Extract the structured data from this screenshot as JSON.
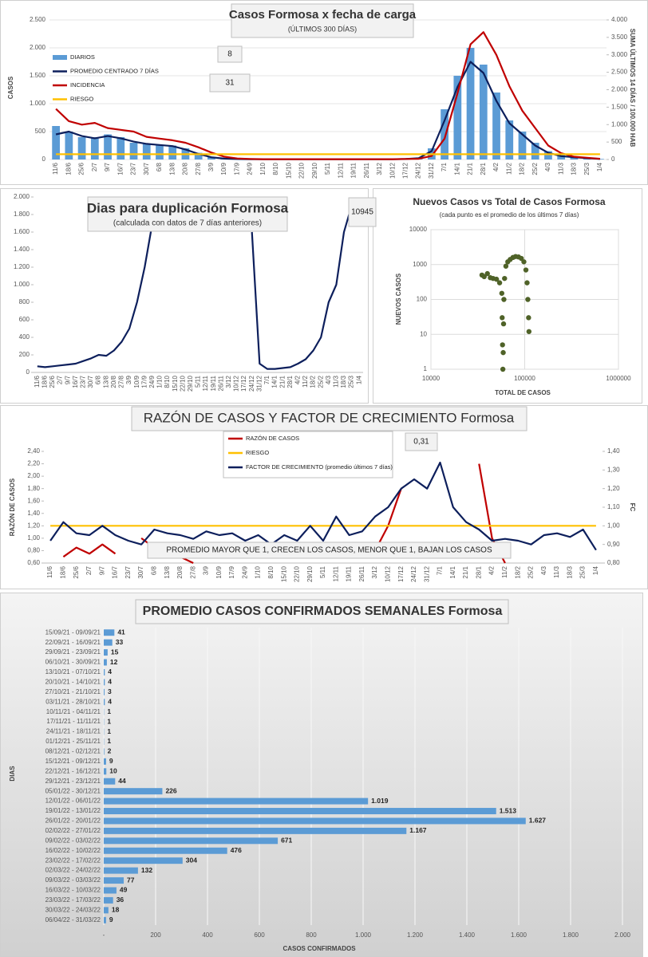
{
  "chart_data": [
    {
      "type": "bar",
      "title": "Casos Formosa x fecha de carga",
      "subtitle": "(ÚLTIMOS 300 DÍAS)",
      "y_label": "CASOS",
      "y2_label": "SUMA ÚLTIMOS 14 DÍAS / 100.000 HAB",
      "categories": [
        "11/6",
        "18/6",
        "25/6",
        "2/7",
        "9/7",
        "16/7",
        "23/7",
        "30/7",
        "6/8",
        "13/8",
        "20/8",
        "27/8",
        "3/9",
        "10/9",
        "17/9",
        "24/9",
        "1/10",
        "8/10",
        "15/10",
        "22/10",
        "29/10",
        "5/11",
        "12/11",
        "19/11",
        "26/11",
        "3/12",
        "10/12",
        "17/12",
        "24/12",
        "31/12",
        "7/1",
        "14/1",
        "21/1",
        "28/1",
        "4/2",
        "11/2",
        "18/2",
        "25/2",
        "4/3",
        "11/3",
        "18/3",
        "25/3",
        "1/4"
      ],
      "series": [
        {
          "name": "DIARIOS",
          "type": "bar",
          "color": "#5b9bd5",
          "values": [
            600,
            500,
            400,
            400,
            450,
            400,
            300,
            280,
            250,
            250,
            200,
            120,
            50,
            20,
            10,
            5,
            5,
            5,
            5,
            5,
            5,
            5,
            5,
            5,
            5,
            5,
            5,
            10,
            30,
            200,
            900,
            1500,
            2000,
            1700,
            1200,
            700,
            500,
            300,
            150,
            80,
            50,
            30,
            10
          ]
        },
        {
          "name": "PROMEDIO CENTRADO 7 DÍAS",
          "type": "line",
          "color": "#0d1f5c",
          "values": [
            450,
            500,
            420,
            380,
            420,
            380,
            320,
            280,
            260,
            240,
            180,
            100,
            40,
            15,
            8,
            5,
            5,
            5,
            5,
            5,
            5,
            5,
            5,
            5,
            5,
            5,
            5,
            8,
            25,
            150,
            700,
            1300,
            1750,
            1550,
            1050,
            650,
            450,
            250,
            120,
            60,
            40,
            25,
            10
          ]
        },
        {
          "name": "INCIDENCIA",
          "type": "line",
          "axis": "y2",
          "color": "#c00000",
          "values": [
            1450,
            1100,
            1000,
            1050,
            900,
            850,
            800,
            650,
            600,
            550,
            480,
            350,
            200,
            80,
            30,
            15,
            10,
            10,
            10,
            10,
            10,
            10,
            10,
            10,
            10,
            10,
            10,
            15,
            20,
            100,
            600,
            1900,
            3300,
            3650,
            3000,
            2100,
            1400,
            900,
            400,
            180,
            80,
            50,
            20
          ]
        },
        {
          "name": "RIESGO",
          "type": "line",
          "axis": "y2",
          "color": "#ffc000",
          "values": [
            150,
            150,
            150,
            150,
            150,
            150,
            150,
            150,
            150,
            150,
            150,
            150,
            150,
            150,
            150,
            150,
            150,
            150,
            150,
            150,
            150,
            150,
            150,
            150,
            150,
            150,
            150,
            150,
            150,
            150,
            150,
            150,
            150,
            150,
            150,
            150,
            150,
            150,
            150,
            150,
            150,
            150,
            150
          ]
        }
      ],
      "ylim": [
        0,
        2500
      ],
      "yticks": [
        0,
        500,
        {
          "value": 1000,
          "label": "1.000"
        },
        {
          "value": 1500,
          "label": "1.500"
        },
        {
          "value": 2000,
          "label": "2.000"
        },
        {
          "value": 2500,
          "label": "2.500"
        }
      ],
      "y2lim": [
        0,
        4000
      ],
      "y2ticks": [
        0,
        500,
        {
          "value": 1000,
          "label": "1.000"
        },
        {
          "value": 1500,
          "label": "1.500"
        },
        {
          "value": 2000,
          "label": "2.000"
        },
        {
          "value": 2500,
          "label": "2.500"
        },
        {
          "value": 3000,
          "label": "3.000"
        },
        {
          "value": 3500,
          "label": "3.500"
        },
        {
          "value": 4000,
          "label": "4.000"
        }
      ],
      "grid": true,
      "legend": "upper left",
      "annotations": [
        "8",
        "31"
      ]
    },
    {
      "type": "line",
      "title": "Dias para duplicación Formosa",
      "subtitle": "(calculada con datos de 7 días anteriores)",
      "categories": [
        "11/6",
        "18/6",
        "25/6",
        "2/7",
        "9/7",
        "16/7",
        "23/7",
        "30/7",
        "6/8",
        "13/8",
        "20/8",
        "27/8",
        "3/9",
        "10/9",
        "17/9",
        "24/9",
        "1/10",
        "8/10",
        "15/10",
        "22/10",
        "29/10",
        "5/11",
        "12/11",
        "19/11",
        "26/11",
        "3/12",
        "10/12",
        "17/12",
        "24/12",
        "31/12",
        "7/1",
        "14/1",
        "21/1",
        "28/1",
        "4/2",
        "11/2",
        "18/2",
        "25/2",
        "4/3",
        "11/3",
        "18/3",
        "25/3",
        "1/4"
      ],
      "series": [
        {
          "color": "#0d1f5c",
          "values": [
            70,
            60,
            70,
            80,
            90,
            100,
            130,
            160,
            200,
            190,
            250,
            350,
            500,
            800,
            1200,
            1700,
            null,
            null,
            null,
            null,
            null,
            null,
            null,
            null,
            null,
            null,
            null,
            null,
            1600,
            100,
            40,
            40,
            50,
            60,
            100,
            150,
            250,
            400,
            800,
            1000,
            1600,
            1900,
            null
          ]
        }
      ],
      "ylim": [
        0,
        2000
      ],
      "yticks": [
        0,
        200,
        400,
        600,
        800,
        {
          "value": 1000,
          "label": "1.000"
        },
        {
          "value": 1200,
          "label": "1.200"
        },
        {
          "value": 1400,
          "label": "1.400"
        },
        {
          "value": 1600,
          "label": "1.600"
        },
        {
          "value": 1800,
          "label": "1.800"
        },
        {
          "value": 2000,
          "label": "2.000"
        }
      ],
      "grid": false,
      "annotations": [
        "10945"
      ]
    },
    {
      "type": "scatter",
      "title": "Nuevos Casos vs Total de Casos Formosa",
      "subtitle": "(cada punto es el promedio de los últimos 7 días)",
      "x_label": "TOTAL DE CASOS",
      "y_label": "NUEVOS CASOS",
      "color": "#4f6228",
      "x": [
        35000,
        37000,
        40000,
        43000,
        46000,
        50000,
        54000,
        57000,
        57500,
        58000,
        58500,
        59000,
        59500,
        60000,
        61000,
        63000,
        66000,
        70000,
        75000,
        80000,
        86000,
        92000,
        98000,
        103000,
        106000,
        108000,
        110000,
        111000
      ],
      "values": [
        500,
        450,
        550,
        420,
        400,
        380,
        300,
        150,
        30,
        5,
        1,
        3,
        20,
        100,
        400,
        900,
        1200,
        1400,
        1600,
        1700,
        1650,
        1500,
        1200,
        700,
        300,
        100,
        30,
        12
      ],
      "xlog": true,
      "ylog": true,
      "xlim": [
        10000,
        1000000
      ],
      "xticks": [
        10000,
        100000,
        1000000
      ],
      "ylim": [
        1,
        10000
      ],
      "yticks": [
        1,
        10,
        100,
        1000,
        10000
      ],
      "grid": true
    },
    {
      "type": "line",
      "title": "RAZÓN DE CASOS Y FACTOR DE CRECIMIENTO Formosa",
      "y_label": "RAZÓN DE CASOS",
      "y2_label": "FC",
      "categories": [
        "11/6",
        "18/6",
        "25/6",
        "2/7",
        "9/7",
        "16/7",
        "23/7",
        "30/7",
        "6/8",
        "13/8",
        "20/8",
        "27/8",
        "3/9",
        "10/9",
        "17/9",
        "24/9",
        "1/10",
        "8/10",
        "15/10",
        "22/10",
        "29/10",
        "5/11",
        "12/11",
        "19/11",
        "26/11",
        "3/12",
        "10/12",
        "17/12",
        "24/12",
        "31/12",
        "7/1",
        "14/1",
        "21/1",
        "28/1",
        "4/2",
        "11/2",
        "18/2",
        "25/2",
        "4/3",
        "11/3",
        "18/3",
        "25/3",
        "1/4"
      ],
      "series": [
        {
          "name": "RAZÓN DE CASOS",
          "type": "line",
          "color": "#c00000",
          "values": [
            null,
            0.7,
            0.85,
            0.75,
            0.9,
            0.75,
            null,
            1.0,
            0.85,
            0.75,
            0.7,
            0.6,
            null,
            null,
            null,
            null,
            null,
            null,
            null,
            null,
            null,
            null,
            null,
            null,
            null,
            0.8,
            1.2,
            1.8,
            null,
            null,
            null,
            null,
            null,
            2.2,
            1.0,
            0.6,
            null,
            null,
            null,
            null,
            null,
            null,
            null
          ]
        },
        {
          "name": "RIESGO",
          "type": "line",
          "color": "#ffc000",
          "values": [
            1.2,
            1.2,
            1.2,
            1.2,
            1.2,
            1.2,
            1.2,
            1.2,
            1.2,
            1.2,
            1.2,
            1.2,
            1.2,
            1.2,
            1.2,
            1.2,
            1.2,
            1.2,
            1.2,
            1.2,
            1.2,
            1.2,
            1.2,
            1.2,
            1.2,
            1.2,
            1.2,
            1.2,
            1.2,
            1.2,
            1.2,
            1.2,
            1.2,
            1.2,
            1.2,
            1.2,
            1.2,
            1.2,
            1.2,
            1.2,
            1.2,
            1.2,
            1.2
          ]
        },
        {
          "name": "FACTOR DE CRECIMIENTO (promedio últimos 7 días)",
          "type": "line",
          "axis": "y2",
          "color": "#0d1f5c",
          "values": [
            0.92,
            1.02,
            0.96,
            0.95,
            1.0,
            0.95,
            0.92,
            0.9,
            0.98,
            0.96,
            0.95,
            0.93,
            0.97,
            0.95,
            0.96,
            0.92,
            0.95,
            0.9,
            0.95,
            0.92,
            1.0,
            0.92,
            1.05,
            0.95,
            0.97,
            1.05,
            1.1,
            1.2,
            1.25,
            1.2,
            1.34,
            1.1,
            1.02,
            0.98,
            0.92,
            0.93,
            0.92,
            0.9,
            0.95,
            0.96,
            0.94,
            0.98,
            0.87
          ]
        }
      ],
      "ylim": [
        0.6,
        2.4
      ],
      "yticks": [
        {
          "value": 0.6,
          "label": "0,60"
        },
        {
          "value": 0.8,
          "label": "0,80"
        },
        {
          "value": 1.0,
          "label": "1,00"
        },
        {
          "value": 1.2,
          "label": "1,20"
        },
        {
          "value": 1.4,
          "label": "1,40"
        },
        {
          "value": 1.6,
          "label": "1,60"
        },
        {
          "value": 1.8,
          "label": "1,80"
        },
        {
          "value": 2.0,
          "label": "2,00"
        },
        {
          "value": 2.2,
          "label": "2,20"
        },
        {
          "value": 2.4,
          "label": "2,40"
        }
      ],
      "y2lim": [
        0.8,
        1.4
      ],
      "y2ticks": [
        {
          "value": 0.8,
          "label": "0,80"
        },
        {
          "value": 0.9,
          "label": "0,90"
        },
        {
          "value": 1.0,
          "label": "1,00"
        },
        {
          "value": 1.1,
          "label": "1,10"
        },
        {
          "value": 1.2,
          "label": "1,20"
        },
        {
          "value": 1.3,
          "label": "1,30"
        },
        {
          "value": 1.4,
          "label": "1,40"
        }
      ],
      "grid": false,
      "legend": "upper center",
      "annotations": [
        "0,31",
        "PROMEDIO MAYOR QUE 1, CRECEN LOS CASOS, MENOR QUE 1, BAJAN LOS CASOS"
      ]
    },
    {
      "type": "bar",
      "orientation": "horizontal",
      "title": "PROMEDIO CASOS CONFIRMADOS SEMANALES Formosa",
      "x_label": "CASOS CONFIRMADOS",
      "y_label": "DIAS",
      "color": "#5b9bd5",
      "categories": [
        "15/09/21 - 09/09/21",
        "22/09/21 - 16/09/21",
        "29/09/21 - 23/09/21",
        "06/10/21 - 30/09/21",
        "13/10/21 - 07/10/21",
        "20/10/21 - 14/10/21",
        "27/10/21 - 21/10/21",
        "03/11/21 - 28/10/21",
        "10/11/21 - 04/11/21",
        "17/11/21 - 11/11/21",
        "24/11/21 - 18/11/21",
        "01/12/21 - 25/11/21",
        "08/12/21 - 02/12/21",
        "15/12/21 - 09/12/21",
        "22/12/21 - 16/12/21",
        "29/12/21 - 23/12/21",
        "05/01/22 - 30/12/21",
        "12/01/22 - 06/01/22",
        "19/01/22 - 13/01/22",
        "26/01/22 - 20/01/22",
        "02/02/22 - 27/01/22",
        "09/02/22 - 03/02/22",
        "16/02/22 - 10/02/22",
        "23/02/22 - 17/02/22",
        "02/03/22 - 24/02/22",
        "09/03/22 - 03/03/22",
        "16/03/22 - 10/03/22",
        "23/03/22 - 17/03/22",
        "30/03/22 - 24/03/22",
        "06/04/22 - 31/03/22"
      ],
      "values": [
        41,
        33,
        15,
        12,
        4,
        4,
        3,
        4,
        1,
        1,
        1,
        1,
        2,
        9,
        10,
        44,
        226,
        1019,
        1513,
        1627,
        1167,
        671,
        476,
        304,
        132,
        77,
        49,
        36,
        18,
        9
      ],
      "value_labels": [
        "41",
        "33",
        "15",
        "12",
        "4",
        "4",
        "3",
        "4",
        "1",
        "1",
        "1",
        "1",
        "2",
        "9",
        "10",
        "44",
        "226",
        "1.019",
        "1.513",
        "1.627",
        "1.167",
        "671",
        "476",
        "304",
        "132",
        "77",
        "49",
        "36",
        "18",
        "9"
      ],
      "xlim": [
        0,
        2000
      ],
      "xticks": [
        {
          "value": 0,
          "label": "-"
        },
        200,
        400,
        600,
        800,
        {
          "value": 1000,
          "label": "1.000"
        },
        {
          "value": 1200,
          "label": "1.200"
        },
        {
          "value": 1400,
          "label": "1.400"
        },
        {
          "value": 1600,
          "label": "1.600"
        },
        {
          "value": 1800,
          "label": "1.800"
        },
        {
          "value": 2000,
          "label": "2.000"
        }
      ],
      "grid": true
    }
  ]
}
